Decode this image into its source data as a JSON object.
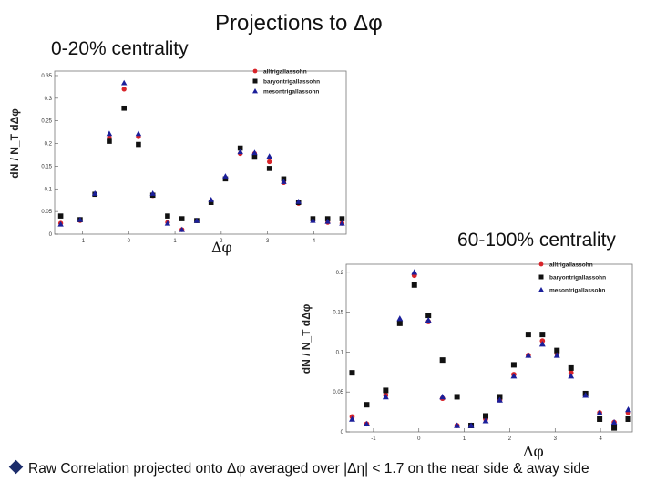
{
  "header": {
    "title": "Projections to Δφ",
    "left_label": "0-20% centrality",
    "right_label": "60-100% centrality"
  },
  "caption": {
    "text": "Raw Correlation projected onto Δφ  averaged over |Δη| < 1.7 on the near side & away side"
  },
  "chart_data": [
    {
      "type": "scatter",
      "title": "0-20% centrality",
      "xlabel": "Δφ",
      "ylabel": "dN / N_T dΔφ",
      "xlim": [
        -1.6,
        4.7
      ],
      "ylim": [
        0,
        0.36
      ],
      "xticks": [
        -1,
        0,
        1,
        2,
        3,
        4
      ],
      "xtick_labels": [
        "-1",
        "0",
        "1",
        "2",
        "3",
        "4"
      ],
      "yticks": [
        0,
        0.05,
        0.1,
        0.15,
        0.2,
        0.25,
        0.3,
        0.35
      ],
      "ytick_labels": [
        "0",
        "0.05",
        "0.1",
        "0.15",
        "0.2",
        "0.25",
        "0.3",
        "0.35"
      ],
      "legend_position": "top-right",
      "x": [
        -1.47,
        -1.05,
        -0.73,
        -0.42,
        -0.1,
        0.21,
        0.52,
        0.84,
        1.15,
        1.47,
        1.78,
        2.09,
        2.41,
        2.72,
        3.04,
        3.35,
        3.67,
        3.98,
        4.3,
        4.61
      ],
      "series": [
        {
          "name": "alltrigallassohn",
          "marker": "circle",
          "color": "#d8242a",
          "values": [
            0.024,
            0.03,
            0.088,
            0.213,
            0.32,
            0.215,
            0.085,
            0.026,
            0.01,
            0.03,
            0.073,
            0.122,
            0.178,
            0.178,
            0.16,
            0.114,
            0.068,
            0.03,
            0.026,
            0.024
          ]
        },
        {
          "name": "baryontrigallassohn",
          "marker": "square",
          "color": "#111111",
          "values": [
            0.04,
            0.032,
            0.088,
            0.205,
            0.278,
            0.198,
            0.086,
            0.04,
            0.034,
            0.03,
            0.07,
            0.122,
            0.19,
            0.17,
            0.145,
            0.122,
            0.07,
            0.034,
            0.034,
            0.034
          ]
        },
        {
          "name": "mesontrigallassohn",
          "marker": "triangle",
          "color": "#1b1f9a",
          "values": [
            0.022,
            0.032,
            0.09,
            0.222,
            0.334,
            0.222,
            0.09,
            0.024,
            0.01,
            0.03,
            0.076,
            0.128,
            0.182,
            0.18,
            0.172,
            0.116,
            0.072,
            0.03,
            0.028,
            0.024
          ]
        }
      ]
    },
    {
      "type": "scatter",
      "title": "60-100% centrality",
      "xlabel": "Δφ",
      "ylabel": "dN / N_T dΔφ",
      "xlim": [
        -1.6,
        4.7
      ],
      "ylim": [
        0,
        0.21
      ],
      "xticks": [
        -1,
        0,
        1,
        2,
        3,
        4
      ],
      "xtick_labels": [
        "-1",
        "0",
        "1",
        "2",
        "3",
        "4"
      ],
      "yticks": [
        0,
        0.05,
        0.1,
        0.15,
        0.2
      ],
      "ytick_labels": [
        "0",
        "0.05",
        "0.1",
        "0.15",
        "0.2"
      ],
      "legend_position": "top-right",
      "x": [
        -1.47,
        -1.15,
        -0.73,
        -0.42,
        -0.1,
        0.21,
        0.52,
        0.84,
        1.15,
        1.47,
        1.78,
        2.09,
        2.41,
        2.72,
        3.04,
        3.35,
        3.67,
        3.98,
        4.3,
        4.61
      ],
      "series": [
        {
          "name": "alltrigallassohn",
          "marker": "circle",
          "color": "#d8242a",
          "values": [
            0.019,
            0.01,
            0.046,
            0.136,
            0.196,
            0.138,
            0.042,
            0.008,
            0.008,
            0.016,
            0.04,
            0.072,
            0.096,
            0.114,
            0.098,
            0.074,
            0.046,
            0.024,
            0.012,
            0.024
          ]
        },
        {
          "name": "baryontrigallassohn",
          "marker": "square",
          "color": "#111111",
          "values": [
            0.074,
            0.034,
            0.052,
            0.136,
            0.184,
            0.146,
            0.09,
            0.044,
            0.008,
            0.02,
            0.044,
            0.084,
            0.122,
            0.122,
            0.102,
            0.08,
            0.048,
            0.016,
            0.005,
            0.016
          ]
        },
        {
          "name": "mesontrigallassohn",
          "marker": "triangle",
          "color": "#1b1f9a",
          "values": [
            0.016,
            0.01,
            0.044,
            0.142,
            0.2,
            0.14,
            0.044,
            0.008,
            0.008,
            0.014,
            0.04,
            0.07,
            0.096,
            0.11,
            0.096,
            0.07,
            0.046,
            0.024,
            0.012,
            0.028
          ]
        }
      ]
    }
  ]
}
